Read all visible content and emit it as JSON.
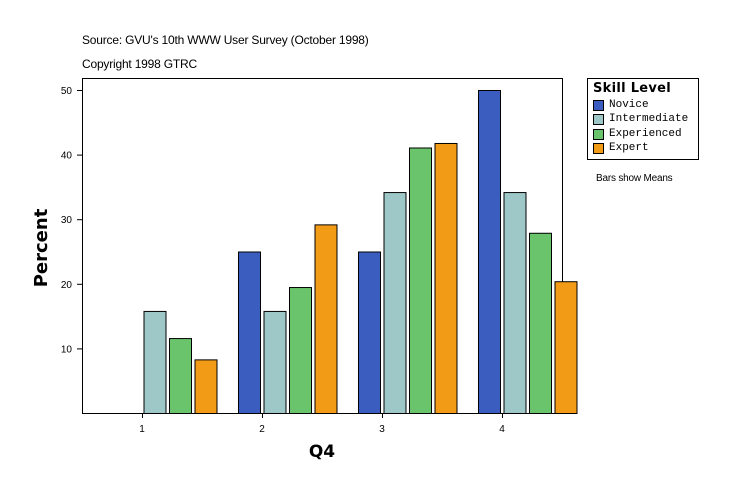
{
  "source_line": "Source: GVU's 10th WWW User Survey (October 1998)",
  "copyright_line": "Copyright 1998 GTRC",
  "note": "Bars show Means",
  "chart_data": {
    "type": "bar",
    "title": "",
    "xlabel": "Q4",
    "ylabel": "Percent",
    "categories": [
      "1",
      "2",
      "3",
      "4"
    ],
    "y_ticks": [
      "10",
      "20",
      "30",
      "40",
      "50"
    ],
    "ylim": [
      0,
      50
    ],
    "grid": false,
    "legend_title": "Skill Level",
    "legend_position": "top-right, outside plot",
    "series": [
      {
        "name": "Novice",
        "color": "#3a5dbf",
        "values": [
          null,
          25,
          25,
          50
        ]
      },
      {
        "name": "Intermediate",
        "color": "#9ec8c8",
        "values": [
          15.8,
          15.8,
          34.2,
          34.2
        ]
      },
      {
        "name": "Experienced",
        "color": "#69c46b",
        "values": [
          11.6,
          19.5,
          41.1,
          27.9
        ]
      },
      {
        "name": "Expert",
        "color": "#f29b16",
        "values": [
          8.3,
          29.2,
          41.8,
          20.4
        ]
      }
    ]
  }
}
